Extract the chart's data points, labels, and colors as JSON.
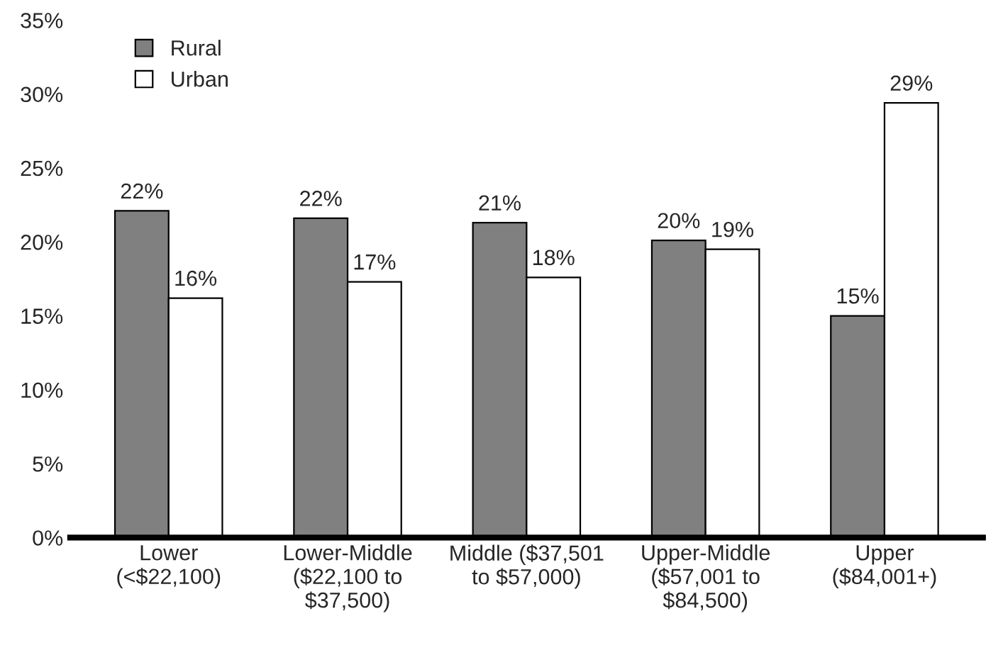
{
  "chart_data": {
    "type": "bar",
    "categories": [
      "Lower\n(<$22,100)",
      "Lower-Middle\n($22,100 to\n$37,500)",
      "Middle ($37,501\nto $57,000)",
      "Upper-Middle\n($57,001 to\n$84,500)",
      "Upper\n($84,001+)"
    ],
    "series": [
      {
        "name": "Rural",
        "color": "#808080",
        "values": [
          22.1,
          21.6,
          21.3,
          20.1,
          15.0
        ],
        "value_labels": [
          "22%",
          "22%",
          "21%",
          "20%",
          "15%"
        ]
      },
      {
        "name": "Urban",
        "color": "#ffffff",
        "values": [
          16.2,
          17.3,
          17.6,
          19.5,
          29.4
        ],
        "value_labels": [
          "16%",
          "17%",
          "18%",
          "19%",
          "29%"
        ]
      }
    ],
    "ylim": [
      0,
      35
    ],
    "yticks": [
      {
        "value": 0,
        "label": "0%"
      },
      {
        "value": 5,
        "label": "5%"
      },
      {
        "value": 10,
        "label": "10%"
      },
      {
        "value": 15,
        "label": "15%"
      },
      {
        "value": 20,
        "label": "20%"
      },
      {
        "value": 25,
        "label": "25%"
      },
      {
        "value": 30,
        "label": "30%"
      },
      {
        "value": 35,
        "label": "35%"
      }
    ],
    "grid": false,
    "legend": "top left"
  }
}
